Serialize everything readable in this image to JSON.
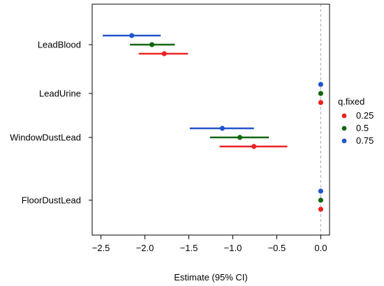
{
  "chart_data": {
    "type": "scatter",
    "title": "",
    "xlabel": "Estimate (95% CI)",
    "ylabel": "",
    "xlim": [
      -2.6,
      0.1
    ],
    "x_ticks": [
      -2.5,
      -2.0,
      -1.5,
      -1.0,
      -0.5,
      0.0
    ],
    "x_tick_labels": [
      "−2.5",
      "−2.0",
      "−1.5",
      "−1.0",
      "−0.5",
      "0.0"
    ],
    "reference_line_x": 0.0,
    "categories": [
      "LeadBlood",
      "LeadUrine",
      "WindowDustLead",
      "FloorDustLead"
    ],
    "legend": {
      "title": "q.fixed",
      "placement": "right"
    },
    "series": [
      {
        "name": "0.25",
        "color": "#ee2222",
        "points": [
          {
            "category": "LeadBlood",
            "estimate": -1.78,
            "lower": -2.07,
            "upper": -1.51
          },
          {
            "category": "LeadUrine",
            "estimate": 0.0,
            "lower": 0.0,
            "upper": 0.0
          },
          {
            "category": "WindowDustLead",
            "estimate": -0.76,
            "lower": -1.15,
            "upper": -0.38
          },
          {
            "category": "FloorDustLead",
            "estimate": 0.0,
            "lower": 0.0,
            "upper": 0.0
          }
        ]
      },
      {
        "name": "0.5",
        "color": "#116611",
        "points": [
          {
            "category": "LeadBlood",
            "estimate": -1.92,
            "lower": -2.17,
            "upper": -1.66
          },
          {
            "category": "LeadUrine",
            "estimate": 0.0,
            "lower": 0.0,
            "upper": 0.0
          },
          {
            "category": "WindowDustLead",
            "estimate": -0.92,
            "lower": -1.26,
            "upper": -0.59
          },
          {
            "category": "FloorDustLead",
            "estimate": 0.0,
            "lower": 0.0,
            "upper": 0.0
          }
        ]
      },
      {
        "name": "0.75",
        "color": "#2255cc",
        "points": [
          {
            "category": "LeadBlood",
            "estimate": -2.15,
            "lower": -2.48,
            "upper": -1.82
          },
          {
            "category": "LeadUrine",
            "estimate": 0.0,
            "lower": 0.0,
            "upper": 0.0
          },
          {
            "category": "WindowDustLead",
            "estimate": -1.12,
            "lower": -1.49,
            "upper": -0.76
          },
          {
            "category": "FloorDustLead",
            "estimate": 0.0,
            "lower": 0.0,
            "upper": 0.0
          }
        ]
      }
    ]
  }
}
